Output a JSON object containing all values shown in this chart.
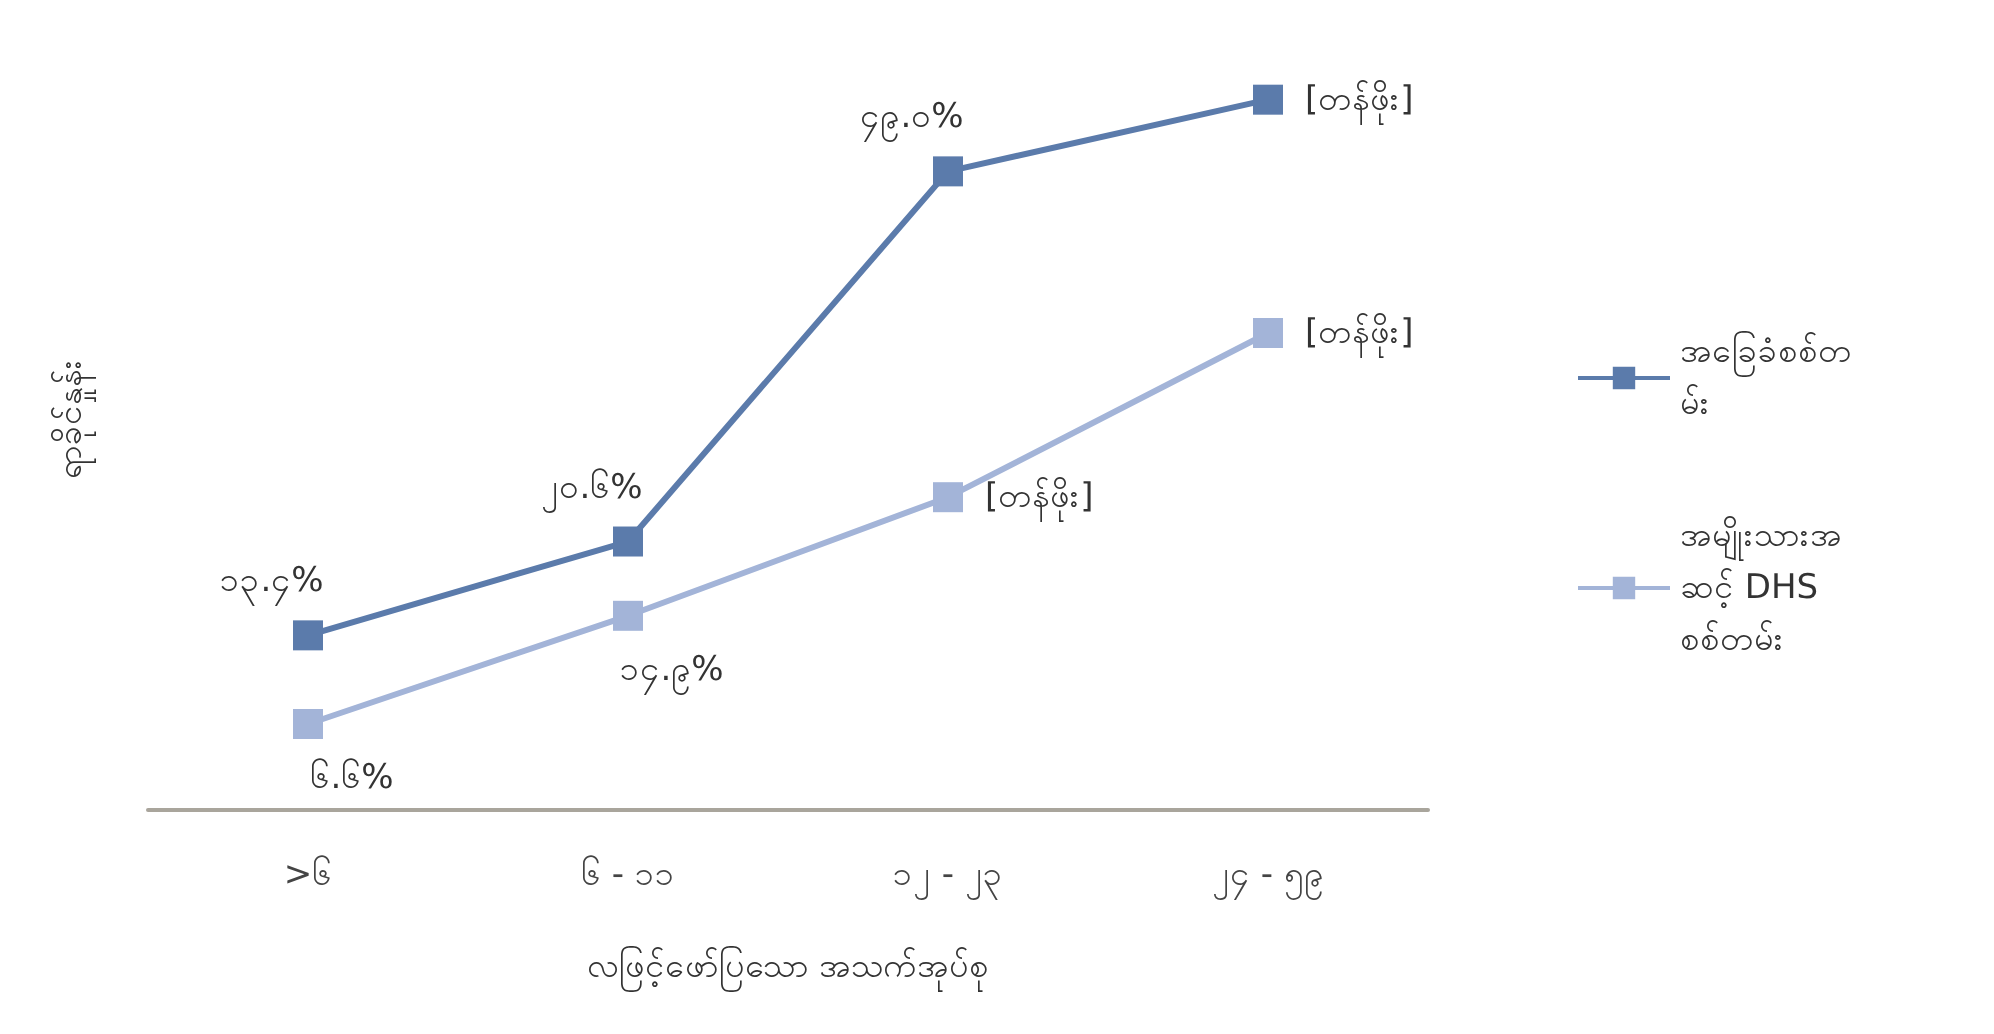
{
  "chart_data": {
    "type": "line",
    "xlabel": "လဖြင့်ဖော်ပြသော အသက်အုပ်စု",
    "ylabel": "ရာခိုင်နှုန်း",
    "categories": [
      ">၆",
      "၆ - ၁၁",
      "၁၂ - ၂၃",
      "၂၄ - ၅၉"
    ],
    "tick_labels": "x",
    "grid": false,
    "legend": "right",
    "marker": "square",
    "line_style": "solid",
    "series": [
      {
        "name": "အခြေခံစစ်တမ်း",
        "color": "#5b7bab",
        "values": [
          13.4,
          20.6,
          49.0,
          54.5
        ],
        "value_labels": [
          "၁၃.၄%",
          "၂၀.၆%",
          "၄၉.၀%",
          "[တန်ဖိုး]"
        ]
      },
      {
        "name": "အမျိုးသားအဆင့် DHS စစ်တမ်း",
        "color": "#a3b4d8",
        "values": [
          6.6,
          14.9,
          24.0,
          36.6
        ],
        "value_labels": [
          "၆.၆%",
          "၁၄.၉%",
          "[တန်ဖိုး]",
          "[တန်ဖိုး]"
        ]
      }
    ]
  }
}
